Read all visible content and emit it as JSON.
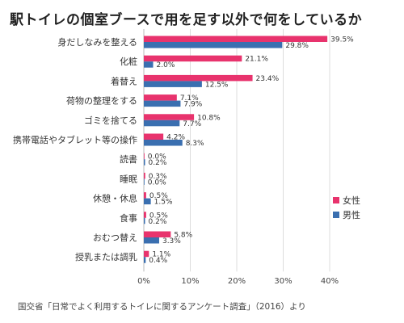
{
  "chart_data": {
    "type": "bar",
    "orientation": "horizontal",
    "title": "駅トイレの個室ブースで用を足す以外で何をしているか",
    "categories": [
      "身だしなみを整える",
      "化粧",
      "着替え",
      "荷物の整理をする",
      "ゴミを捨てる",
      "携帯電話やタブレット等の操作",
      "読書",
      "睡眠",
      "休憩・休息",
      "食事",
      "おむつ替え",
      "授乳または調乳"
    ],
    "series": [
      {
        "name": "女性",
        "color": "#e8336d",
        "values": [
          39.5,
          21.1,
          23.4,
          7.1,
          10.8,
          4.2,
          0.0,
          0.3,
          0.5,
          0.5,
          5.8,
          1.1
        ],
        "labels": [
          "39.5%",
          "21.1%",
          "23.4%",
          "7.1%",
          "10.8%",
          "4.2%",
          "0.0%",
          "0.3%",
          "0.5%",
          "0.5%",
          "5.8%",
          "1.1%"
        ]
      },
      {
        "name": "男性",
        "color": "#3a6fb0",
        "values": [
          29.8,
          2.0,
          12.5,
          7.9,
          7.7,
          8.3,
          0.2,
          0.0,
          1.5,
          0.2,
          3.3,
          0.4
        ],
        "labels": [
          "29.8%",
          "2.0%",
          "12.5%",
          "7.9%",
          "7.7%",
          "8.3%",
          "0.2%",
          "0.0%",
          "1.5%",
          "0.2%",
          "3.3%",
          "0.4%"
        ]
      }
    ],
    "xlim": [
      0,
      40
    ],
    "xticks": [
      "0%",
      "10%",
      "20%",
      "30%",
      "40%"
    ],
    "grid": true,
    "legend": "right",
    "source": "国交省「日常でよく利用するトイレに関するアンケート調査」（2016）より"
  }
}
